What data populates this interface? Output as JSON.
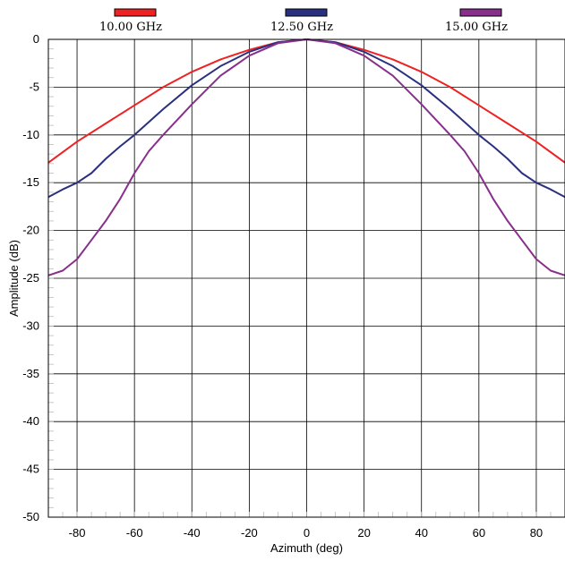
{
  "chart_data": {
    "type": "line",
    "xlabel": "Azimuth (deg)",
    "ylabel": "Amplitude (dB)",
    "xlim": [
      -90,
      90
    ],
    "ylim": [
      -50,
      0
    ],
    "xticks": [
      -80,
      -60,
      -40,
      -20,
      0,
      20,
      40,
      60,
      80
    ],
    "yticks": [
      0,
      -5,
      -10,
      -15,
      -20,
      -25,
      -30,
      -35,
      -40,
      -45,
      -50
    ],
    "grid": true,
    "legend_position": "top",
    "series": [
      {
        "name": "10.00 GHz",
        "color": "#ee2222",
        "x": [
          -90,
          -80,
          -70,
          -60,
          -50,
          -40,
          -30,
          -20,
          -10,
          0,
          10,
          20,
          30,
          40,
          50,
          60,
          70,
          80,
          90
        ],
        "y": [
          -12.9,
          -10.7,
          -8.8,
          -6.9,
          -5.0,
          -3.4,
          -2.1,
          -1.1,
          -0.3,
          0,
          -0.3,
          -1.1,
          -2.1,
          -3.4,
          -5.0,
          -6.9,
          -8.8,
          -10.7,
          -12.9
        ]
      },
      {
        "name": "12.50 GHz",
        "color": "#2a3080",
        "x": [
          -90,
          -85,
          -80,
          -75,
          -70,
          -65,
          -60,
          -50,
          -40,
          -30,
          -20,
          -10,
          0,
          10,
          20,
          30,
          40,
          50,
          60,
          65,
          70,
          75,
          80,
          85,
          90
        ],
        "y": [
          -16.5,
          -15.7,
          -15.0,
          -14.0,
          -12.5,
          -11.2,
          -10.0,
          -7.3,
          -4.8,
          -2.8,
          -1.3,
          -0.3,
          0,
          -0.3,
          -1.3,
          -2.8,
          -4.8,
          -7.3,
          -10.0,
          -11.2,
          -12.5,
          -14.0,
          -15.0,
          -15.7,
          -16.5
        ]
      },
      {
        "name": "15.00 GHz",
        "color": "#882f8c",
        "x": [
          -90,
          -85,
          -80,
          -75,
          -70,
          -65,
          -60,
          -55,
          -50,
          -40,
          -30,
          -20,
          -10,
          0,
          10,
          20,
          30,
          40,
          50,
          55,
          60,
          65,
          70,
          75,
          80,
          85,
          90
        ],
        "y": [
          -24.7,
          -24.2,
          -23.0,
          -21.0,
          -19.0,
          -16.7,
          -14.0,
          -11.7,
          -10.0,
          -6.8,
          -3.8,
          -1.7,
          -0.4,
          0,
          -0.4,
          -1.7,
          -3.8,
          -6.8,
          -10.0,
          -11.7,
          -14.0,
          -16.7,
          -19.0,
          -21.0,
          -23.0,
          -24.2,
          -24.7
        ]
      }
    ]
  }
}
